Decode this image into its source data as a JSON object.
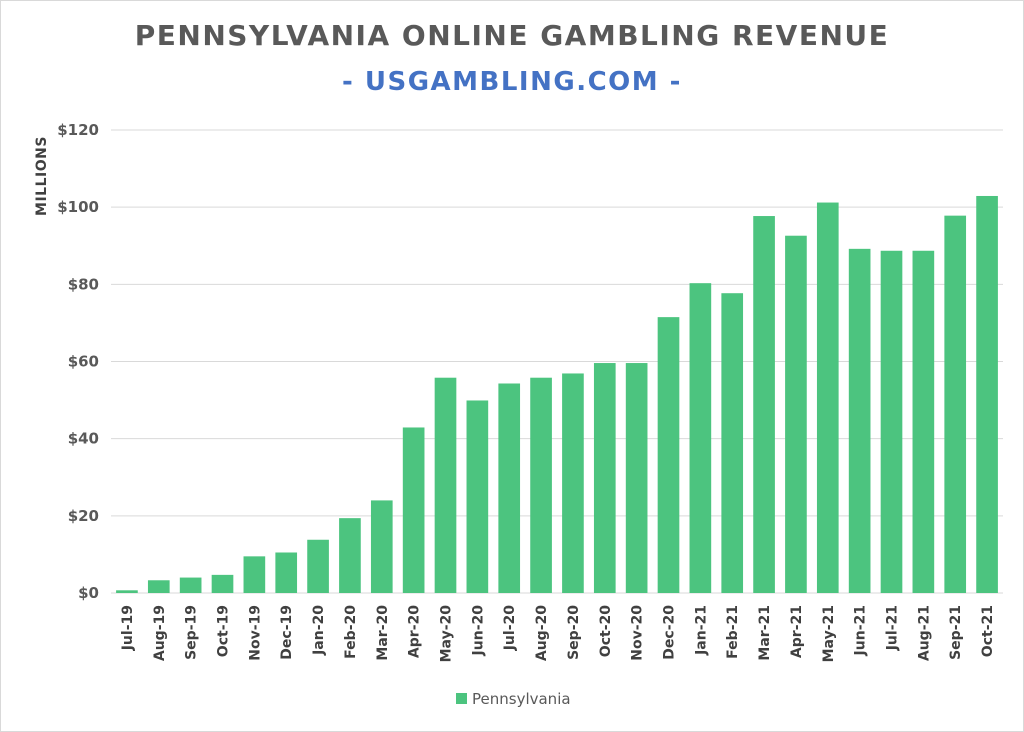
{
  "header": {
    "title": "PENNSYLVANIA ONLINE GAMBLING REVENUE",
    "subtitle": "- USGAMBLING.COM -"
  },
  "colors": {
    "bar": "#4cc47f",
    "gridline": "#d9d9d9",
    "title": "#595959",
    "subtitle": "#4472c4"
  },
  "chart_data": {
    "type": "bar",
    "title": "PENNSYLVANIA ONLINE GAMBLING REVENUE",
    "subtitle": "- USGAMBLING.COM -",
    "xlabel": "",
    "ylabel": "MILLIONS",
    "ylim": [
      0,
      120
    ],
    "yticks": [
      0,
      20,
      40,
      60,
      80,
      100,
      120
    ],
    "ytick_labels": [
      "$0",
      "$20",
      "$40",
      "$60",
      "$80",
      "$100",
      "$120"
    ],
    "grid": true,
    "legend_position": "bottom",
    "categories": [
      "Jul-19",
      "Aug-19",
      "Sep-19",
      "Oct-19",
      "Nov-19",
      "Dec-19",
      "Jan-20",
      "Feb-20",
      "Mar-20",
      "Apr-20",
      "May-20",
      "Jun-20",
      "Jul-20",
      "Aug-20",
      "Sep-20",
      "Oct-20",
      "Nov-20",
      "Dec-20",
      "Jan-21",
      "Feb-21",
      "Mar-21",
      "Apr-21",
      "May-21",
      "Jun-21",
      "Jul-21",
      "Aug-21",
      "Sep-21",
      "Oct-21"
    ],
    "series": [
      {
        "name": "Pennsylvania",
        "values": [
          0.7,
          3.3,
          4.0,
          4.7,
          9.5,
          10.5,
          13.8,
          19.4,
          24.0,
          42.9,
          55.8,
          49.9,
          54.3,
          55.8,
          56.9,
          59.6,
          59.6,
          71.5,
          80.3,
          77.7,
          97.7,
          92.6,
          101.2,
          89.2,
          88.7,
          88.7,
          97.8,
          102.9
        ]
      }
    ]
  }
}
